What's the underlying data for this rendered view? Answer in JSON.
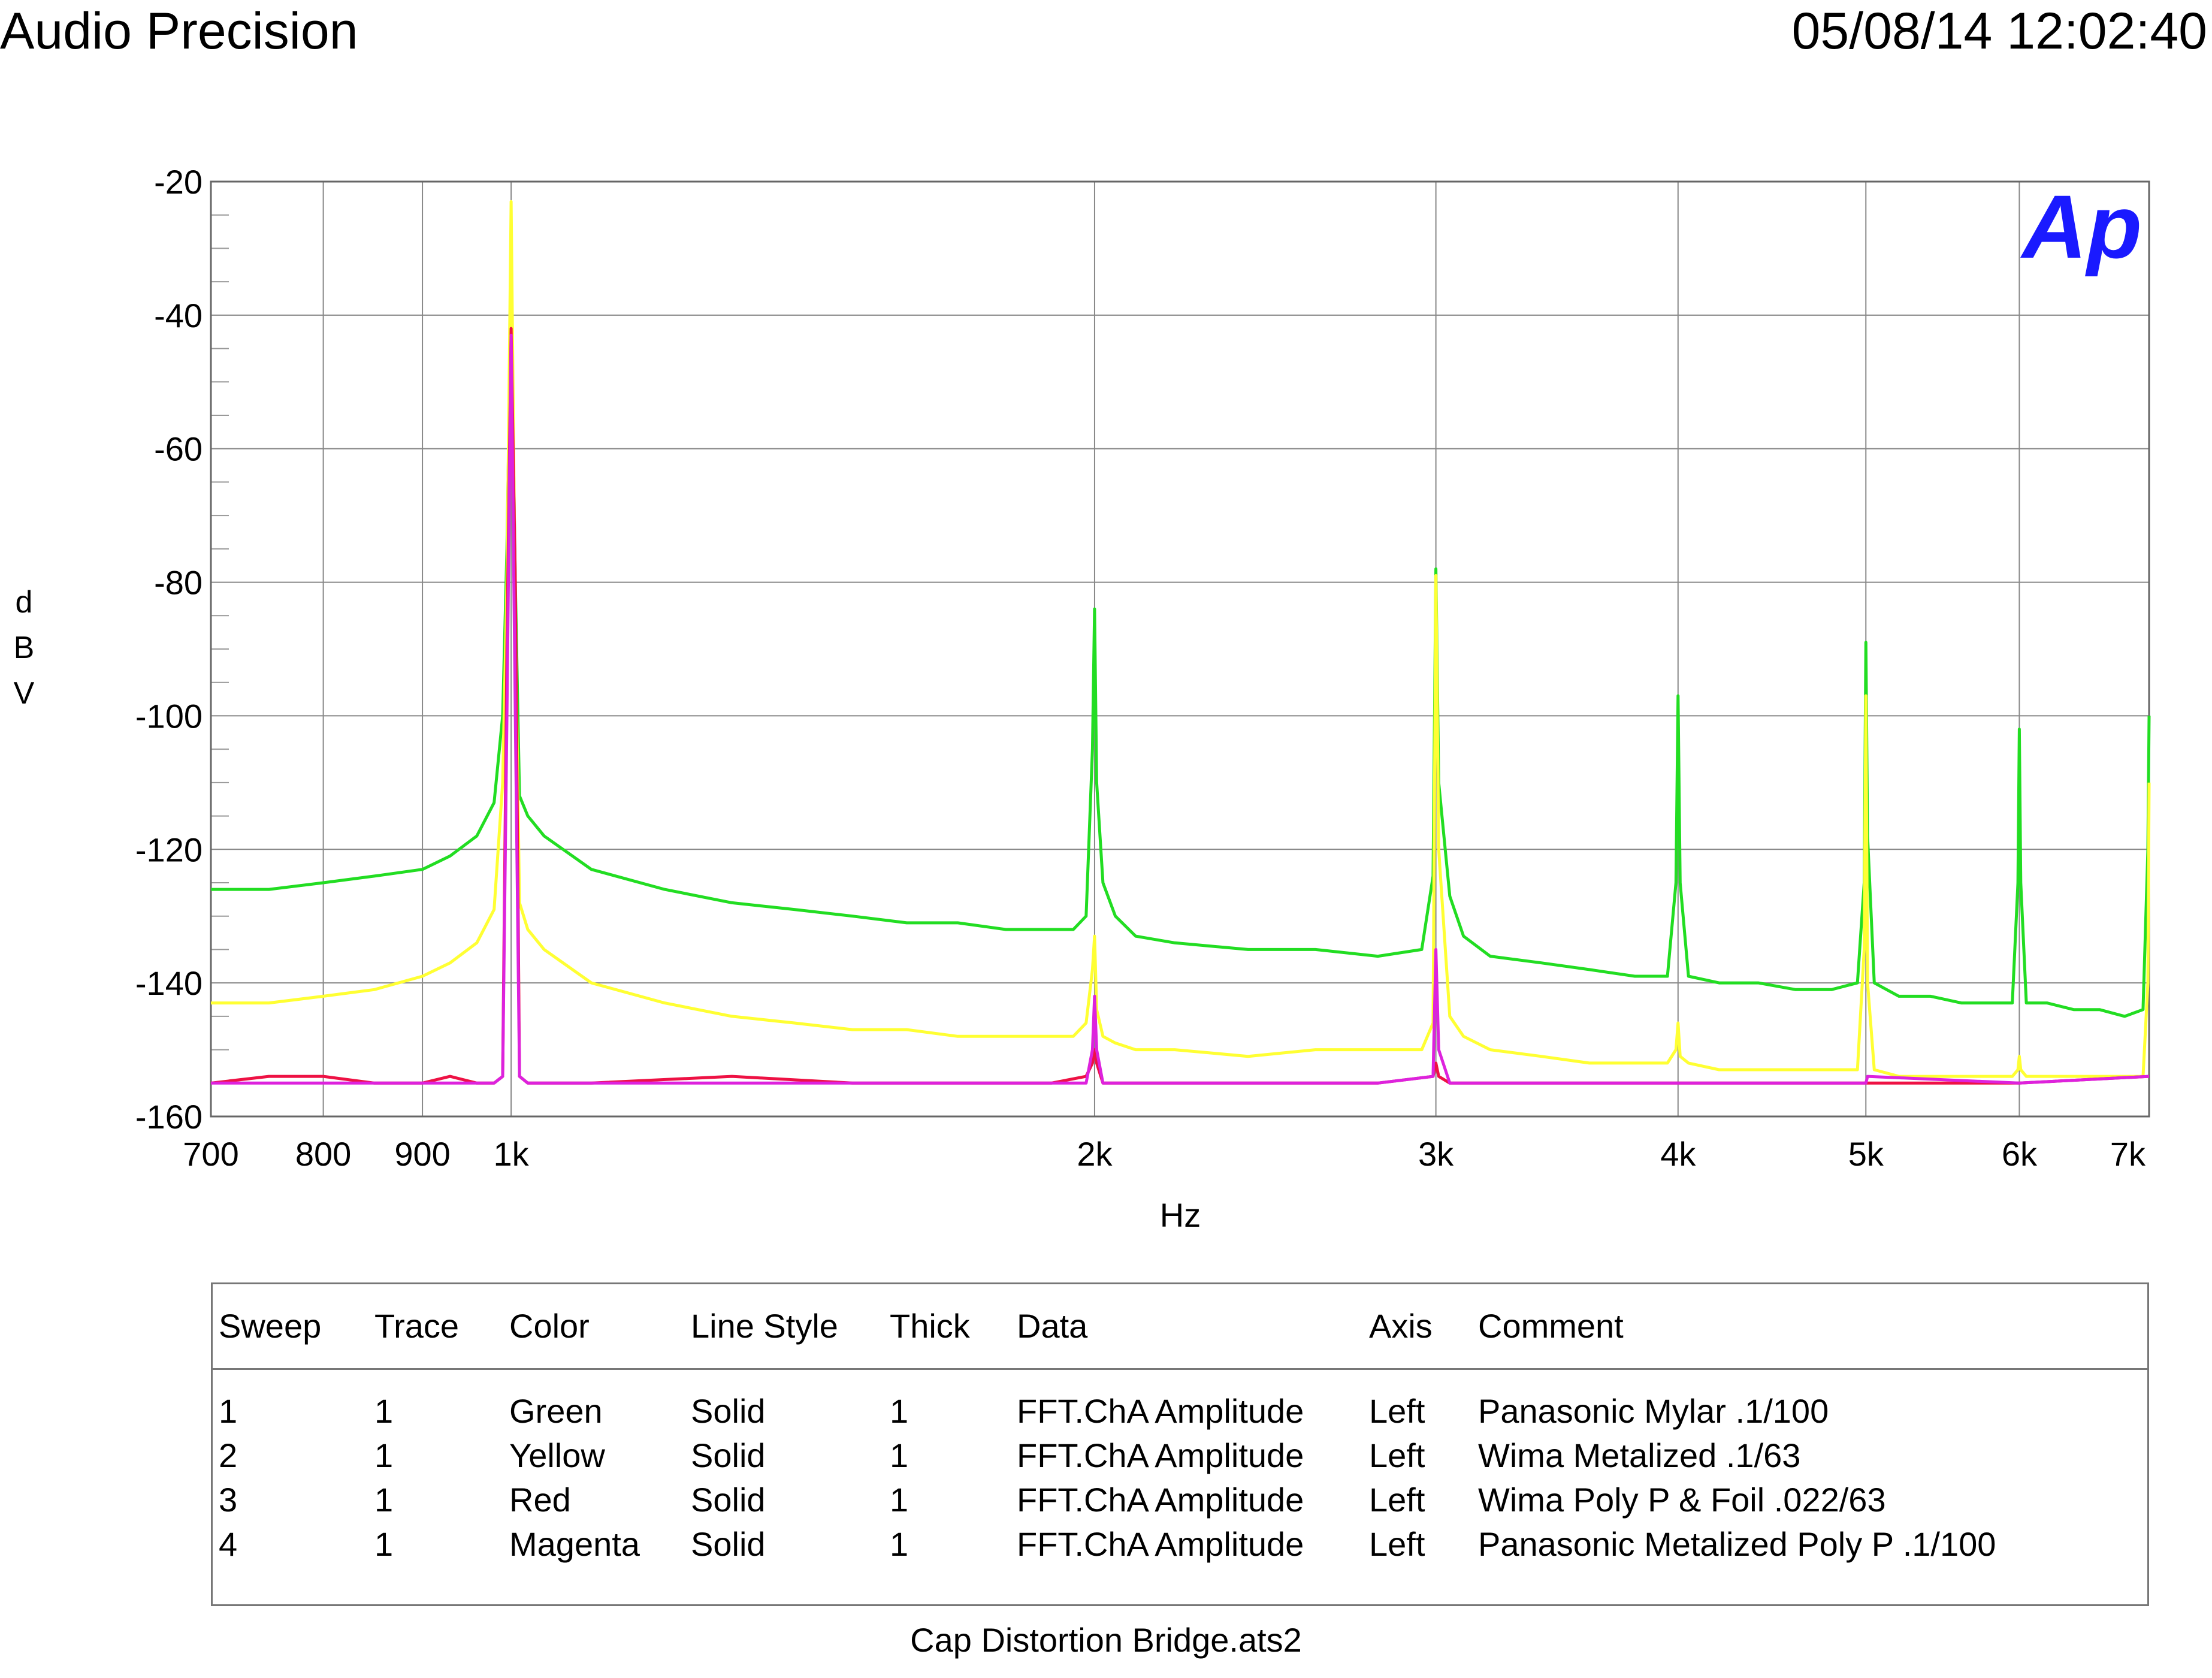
{
  "header": {
    "brand": "Audio Precision",
    "timestamp": "05/08/14 12:02:40"
  },
  "logo_text": "Ap",
  "chart_data": {
    "type": "line",
    "title": "",
    "xlabel": "Hz",
    "ylabel": "dBV",
    "ylabel_chars": [
      "d",
      "B",
      "V"
    ],
    "x_scale": "log",
    "xlim": [
      700,
      7000
    ],
    "ylim": [
      -160,
      -20
    ],
    "x_ticks": [
      700,
      800,
      900,
      1000,
      2000,
      3000,
      4000,
      5000,
      6000,
      7000
    ],
    "x_tick_labels": [
      "700",
      "800",
      "900",
      "1k",
      "2k",
      "3k",
      "4k",
      "5k",
      "6k",
      "7k"
    ],
    "y_ticks": [
      -20,
      -40,
      -60,
      -80,
      -100,
      -120,
      -140,
      -160
    ],
    "y_tick_labels": [
      "-20",
      "-40",
      "-60",
      "-80",
      "-100",
      "-120",
      "-140",
      "-160"
    ],
    "grid": true,
    "series": [
      {
        "name": "Panasonic Mylar .1/100",
        "color": "#22dd22",
        "x": [
          700,
          750,
          800,
          850,
          900,
          930,
          960,
          980,
          990,
          995,
          1000,
          1005,
          1010,
          1020,
          1040,
          1100,
          1200,
          1300,
          1400,
          1500,
          1600,
          1700,
          1800,
          1900,
          1950,
          1980,
          1995,
          2000,
          2005,
          2020,
          2050,
          2100,
          2200,
          2400,
          2600,
          2800,
          2950,
          2990,
          3000,
          3010,
          3050,
          3100,
          3200,
          3400,
          3600,
          3800,
          3950,
          3990,
          4000,
          4010,
          4050,
          4200,
          4400,
          4600,
          4800,
          4950,
          4990,
          5000,
          5010,
          5050,
          5200,
          5400,
          5600,
          5800,
          5950,
          5990,
          6000,
          6010,
          6050,
          6200,
          6400,
          6600,
          6800,
          6950,
          6990,
          7000
        ],
        "y": [
          -126,
          -126,
          -125,
          -124,
          -123,
          -121,
          -118,
          -113,
          -100,
          -75,
          -37,
          -80,
          -112,
          -115,
          -118,
          -123,
          -126,
          -128,
          -129,
          -130,
          -131,
          -131,
          -132,
          -132,
          -132,
          -130,
          -105,
          -84,
          -110,
          -125,
          -130,
          -133,
          -134,
          -135,
          -135,
          -136,
          -135,
          -124,
          -78,
          -110,
          -127,
          -133,
          -136,
          -137,
          -138,
          -139,
          -139,
          -125,
          -97,
          -125,
          -139,
          -140,
          -140,
          -141,
          -141,
          -140,
          -125,
          -89,
          -118,
          -140,
          -142,
          -142,
          -143,
          -143,
          -143,
          -125,
          -102,
          -125,
          -143,
          -143,
          -144,
          -144,
          -145,
          -144,
          -120,
          -100
        ]
      },
      {
        "name": "Wima Metalized .1/63",
        "color": "#ffff33",
        "x": [
          700,
          750,
          800,
          850,
          900,
          930,
          960,
          980,
          990,
          995,
          1000,
          1005,
          1010,
          1020,
          1040,
          1100,
          1200,
          1300,
          1400,
          1500,
          1600,
          1700,
          1800,
          1900,
          1950,
          1980,
          1995,
          2000,
          2005,
          2020,
          2050,
          2100,
          2200,
          2400,
          2600,
          2800,
          2950,
          2990,
          3000,
          3010,
          3050,
          3100,
          3200,
          3400,
          3600,
          3800,
          3950,
          3990,
          4000,
          4010,
          4050,
          4200,
          4400,
          4600,
          4800,
          4950,
          4990,
          5000,
          5010,
          5050,
          5200,
          5400,
          5600,
          5800,
          5950,
          5990,
          6000,
          6010,
          6050,
          6200,
          6400,
          6600,
          6800,
          6950,
          6990,
          7000
        ],
        "y": [
          -143,
          -143,
          -142,
          -141,
          -139,
          -137,
          -134,
          -129,
          -110,
          -80,
          -23,
          -85,
          -128,
          -132,
          -135,
          -140,
          -143,
          -145,
          -146,
          -147,
          -147,
          -148,
          -148,
          -148,
          -148,
          -146,
          -138,
          -133,
          -144,
          -148,
          -149,
          -150,
          -150,
          -151,
          -150,
          -150,
          -150,
          -146,
          -79,
          -120,
          -145,
          -148,
          -150,
          -151,
          -152,
          -152,
          -152,
          -150,
          -146,
          -151,
          -152,
          -153,
          -153,
          -153,
          -153,
          -153,
          -135,
          -97,
          -140,
          -153,
          -154,
          -154,
          -154,
          -154,
          -154,
          -153,
          -151,
          -153,
          -154,
          -154,
          -154,
          -154,
          -154,
          -154,
          -140,
          -110
        ]
      },
      {
        "name": "Wima Poly P & Foil .022/63",
        "color": "#ee1144",
        "x": [
          700,
          750,
          800,
          850,
          900,
          930,
          960,
          980,
          990,
          995,
          1000,
          1005,
          1010,
          1020,
          1100,
          1300,
          1500,
          1700,
          1900,
          1980,
          1995,
          2000,
          2005,
          2020,
          2400,
          2800,
          2990,
          3000,
          3010,
          3050,
          3500,
          4000,
          5000,
          6000,
          7000
        ],
        "y": [
          -155,
          -154,
          -154,
          -155,
          -155,
          -154,
          -155,
          -155,
          -154,
          -90,
          -42,
          -80,
          -154,
          -155,
          -155,
          -154,
          -155,
          -155,
          -155,
          -154,
          -152,
          -150,
          -152,
          -155,
          -155,
          -155,
          -154,
          -152,
          -154,
          -155,
          -155,
          -155,
          -155,
          -155,
          -154
        ]
      },
      {
        "name": "Panasonic Metalized Poly P  .1/100",
        "color": "#dd22dd",
        "x": [
          700,
          750,
          800,
          850,
          900,
          930,
          960,
          980,
          990,
          995,
          1000,
          1005,
          1010,
          1020,
          1100,
          1300,
          1500,
          1700,
          1900,
          1980,
          1995,
          2000,
          2005,
          2020,
          2400,
          2800,
          2990,
          3000,
          3010,
          3050,
          3500,
          4000,
          5000,
          5010,
          6000,
          7000
        ],
        "y": [
          -155,
          -155,
          -155,
          -155,
          -155,
          -155,
          -155,
          -155,
          -154,
          -100,
          -43,
          -100,
          -154,
          -155,
          -155,
          -155,
          -155,
          -155,
          -155,
          -155,
          -150,
          -142,
          -150,
          -155,
          -155,
          -155,
          -154,
          -135,
          -150,
          -155,
          -155,
          -155,
          -155,
          -154,
          -155,
          -154
        ]
      }
    ]
  },
  "legend": {
    "headers": [
      "Sweep",
      "Trace",
      "Color",
      "Line Style",
      "Thick",
      "Data",
      "Axis",
      "Comment"
    ],
    "rows": [
      [
        "1",
        "1",
        "Green",
        "Solid",
        "1",
        "FFT.ChA Amplitude",
        "Left",
        "Panasonic Mylar .1/100"
      ],
      [
        "2",
        "1",
        "Yellow",
        "Solid",
        "1",
        "FFT.ChA Amplitude",
        "Left",
        "Wima Metalized .1/63"
      ],
      [
        "3",
        "1",
        "Red",
        "Solid",
        "1",
        "FFT.ChA Amplitude",
        "Left",
        "Wima Poly P & Foil .022/63"
      ],
      [
        "4",
        "1",
        "Magenta",
        "Solid",
        "1",
        "FFT.ChA Amplitude",
        "Left",
        "Panasonic Metalized Poly P  .1/100"
      ]
    ]
  },
  "footer": {
    "file_name": "Cap Distortion Bridge.ats2"
  }
}
